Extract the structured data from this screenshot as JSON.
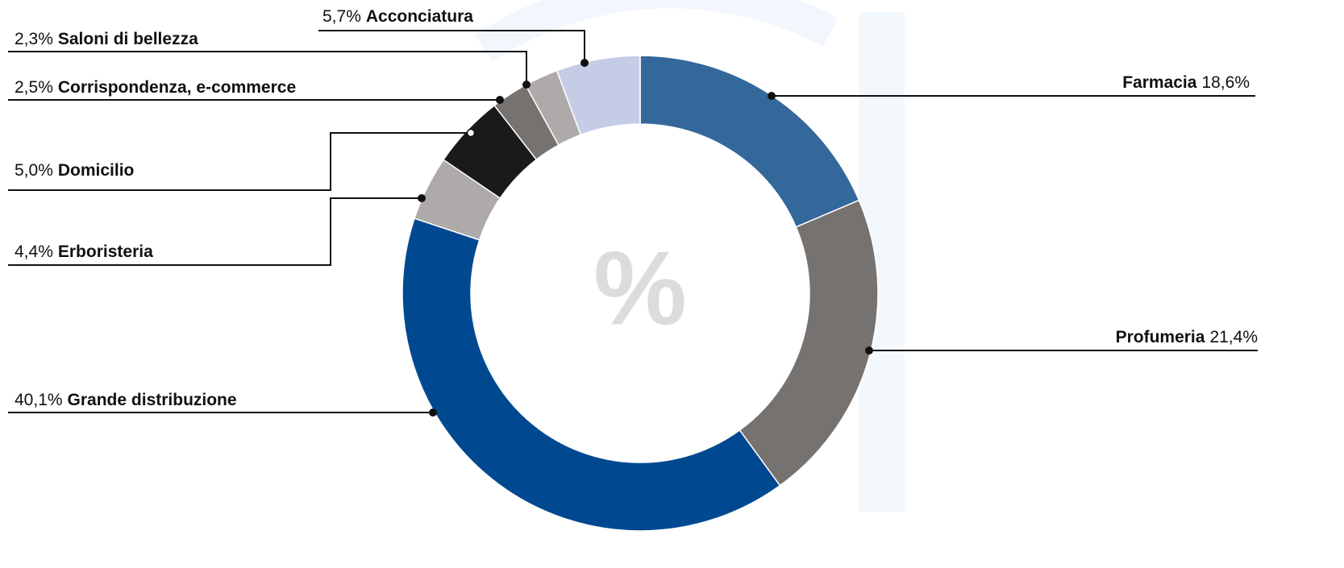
{
  "chart_data": {
    "type": "donut",
    "center_label": "%",
    "categories": [
      "Farmacia",
      "Profumeria",
      "Grande distribuzione",
      "Erboristeria",
      "Domicilio",
      "Corrispondenza, e-commerce",
      "Saloni di bellezza",
      "Acconciatura"
    ],
    "values": [
      18.6,
      21.4,
      40.1,
      4.4,
      5.0,
      2.5,
      2.3,
      5.7
    ],
    "value_labels": [
      "18,6%",
      "21,4%",
      "40,1%",
      "4,4%",
      "5,0%",
      "2,5%",
      "2,3%",
      "5,7%"
    ],
    "colors": [
      "#34679a",
      "#767270",
      "#004990",
      "#aeaaa9",
      "#1a1a1a",
      "#767270",
      "#aeaaa9",
      "#c5cde6"
    ]
  }
}
